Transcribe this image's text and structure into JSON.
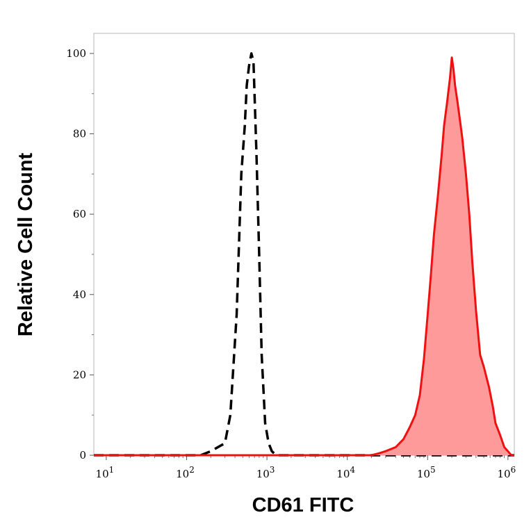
{
  "chart_data": {
    "type": "area",
    "xlabel": "CD61 FITC",
    "ylabel": "Relative Cell Count",
    "x_scale": "log",
    "xlim": [
      7,
      1200000
    ],
    "ylim": [
      0,
      105
    ],
    "x_ticks": [
      {
        "value": 10,
        "base": "10",
        "exp": "1"
      },
      {
        "value": 100,
        "base": "10",
        "exp": "2"
      },
      {
        "value": 1000,
        "base": "10",
        "exp": "3"
      },
      {
        "value": 10000,
        "base": "10",
        "exp": "4"
      },
      {
        "value": 100000,
        "base": "10",
        "exp": "5"
      },
      {
        "value": 1000000,
        "base": "10",
        "exp": "6"
      }
    ],
    "y_ticks": [
      "0",
      "20",
      "40",
      "60",
      "80",
      "100"
    ],
    "grid": false,
    "series": [
      {
        "style": "dashed",
        "color": "#000000",
        "fill": "none",
        "x": [
          7,
          150,
          200,
          300,
          350,
          420,
          480,
          530,
          560,
          600,
          640,
          680,
          700,
          740,
          800,
          860,
          950,
          1050,
          1150,
          1300,
          1600,
          3000,
          1200000
        ],
        "y": [
          0,
          0,
          1,
          3,
          10,
          35,
          70,
          82,
          92,
          97,
          100,
          98,
          90,
          75,
          50,
          25,
          8,
          3,
          1,
          0,
          0,
          0,
          0
        ]
      },
      {
        "style": "solid",
        "color": "#ee1111",
        "fill": "#ff9a9a",
        "x": [
          7,
          20000,
          25000,
          30000,
          40000,
          50000,
          60000,
          70000,
          80000,
          90000,
          100000,
          110000,
          120000,
          135000,
          150000,
          160000,
          175000,
          190000,
          200000,
          210000,
          220000,
          235000,
          250000,
          270000,
          300000,
          330000,
          360000,
          400000,
          450000,
          500000,
          580000,
          650000,
          700000,
          800000,
          900000,
          1000000,
          1100000,
          1200000
        ],
        "y": [
          0,
          0,
          0.5,
          1,
          2,
          4,
          7,
          10,
          15,
          24,
          35,
          45,
          55,
          65,
          75,
          82,
          88,
          94,
          99,
          96,
          92,
          88,
          84,
          79,
          70,
          60,
          48,
          36,
          25,
          22,
          17,
          12,
          8,
          5,
          2,
          1,
          0,
          0
        ]
      }
    ]
  }
}
